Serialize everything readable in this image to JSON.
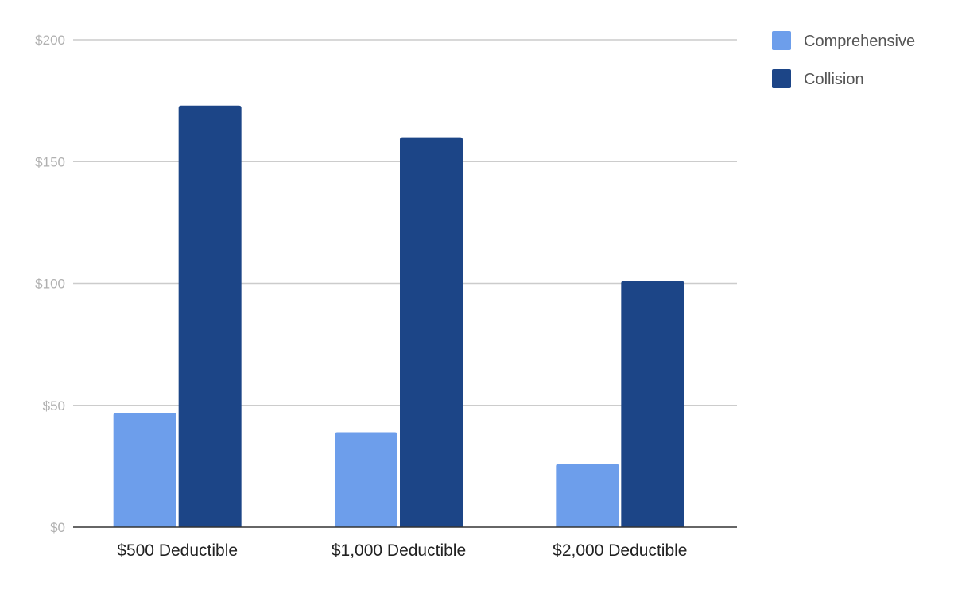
{
  "chart_data": {
    "type": "bar",
    "categories": [
      "$500 Deductible",
      "$1,000 Deductible",
      "$2,000 Deductible"
    ],
    "series": [
      {
        "name": "Comprehensive",
        "values": [
          47,
          39,
          26
        ],
        "color": "#6d9eeb"
      },
      {
        "name": "Collision",
        "values": [
          173,
          160,
          101
        ],
        "color": "#1c4587"
      }
    ],
    "ylim": [
      0,
      200
    ],
    "yticks": [
      0,
      50,
      100,
      150,
      200
    ],
    "ytick_labels": [
      "$0",
      "$50",
      "$100",
      "$150",
      "$200"
    ],
    "grid": true,
    "legend_position": "right",
    "gridline_color": "#cccccc",
    "axis_color": "#333333"
  }
}
